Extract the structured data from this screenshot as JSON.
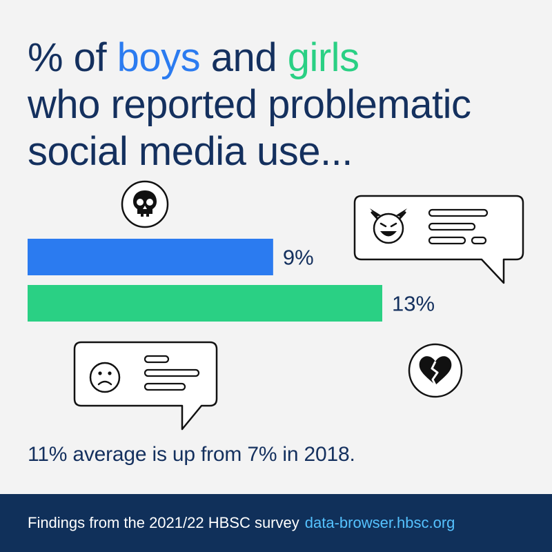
{
  "headline": {
    "part1": "% of ",
    "boys": "boys",
    "part2": " and ",
    "girls": "girls",
    "line2": "who reported problematic",
    "line3": "social media use..."
  },
  "chart_data": {
    "type": "bar",
    "orientation": "horizontal",
    "categories": [
      "boys",
      "girls"
    ],
    "values": [
      9,
      13
    ],
    "data_labels": [
      "9%",
      "13%"
    ],
    "colors": [
      "#2b7bf0",
      "#2ad084"
    ],
    "xlim": [
      0,
      13
    ],
    "title": "",
    "xlabel": "",
    "ylabel": "",
    "grid": false
  },
  "subtitle": "11% average is up from 7% in 2018.",
  "footer": {
    "text": "Findings from the 2021/22 HBSC survey",
    "link": "data-browser.hbsc.org"
  },
  "icons": [
    "skull-icon",
    "devil-emoji-chat-bubble-icon",
    "sad-face-chat-bubble-icon",
    "broken-heart-icon"
  ]
}
